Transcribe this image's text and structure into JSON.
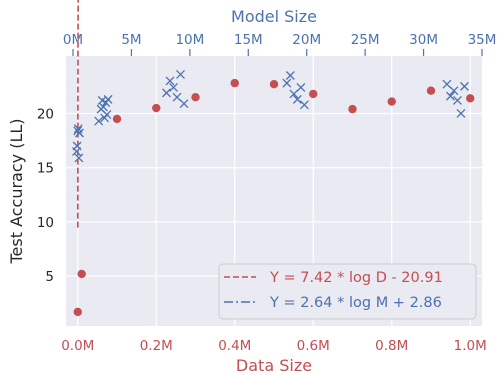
{
  "chart_data": {
    "type": "scatter",
    "grid": true,
    "legend_position": "bottom-right",
    "xlabel_bottom": "Data Size",
    "xlabel_top": "Model Size",
    "ylabel": "Test Accuracy (LL)",
    "x_bottom": {
      "range": [
        -0.03,
        1.03
      ],
      "ticks": [
        0,
        0.2,
        0.4,
        0.6,
        0.8,
        1.0
      ],
      "tick_labels": [
        "0.0M",
        "0.2M",
        "0.4M",
        "0.6M",
        "0.8M",
        "1.0M"
      ]
    },
    "x_top": {
      "range": [
        -0.6,
        35
      ],
      "ticks": [
        0,
        5,
        10,
        15,
        20,
        25,
        30,
        35
      ],
      "tick_labels": [
        "0M",
        "5M",
        "10M",
        "15M",
        "20M",
        "25M",
        "30M",
        "35M"
      ]
    },
    "y": {
      "range": [
        0.4,
        25.3
      ],
      "ticks": [
        5,
        10,
        15,
        20
      ],
      "tick_labels": [
        "5",
        "10",
        "15",
        "20"
      ]
    },
    "colors": {
      "data": "#c44e52",
      "model": "#4c72b0",
      "plot_bg": "#eaeaf2",
      "grid": "#ffffff"
    },
    "series": [
      {
        "name": "Y = 7.42 * log D - 20.91",
        "axis": "data",
        "marker": "circle",
        "x": [
          0.0,
          0.01,
          0.1,
          0.2,
          0.3,
          0.4,
          0.5,
          0.6,
          0.7,
          0.8,
          0.9,
          1.0
        ],
        "y": [
          1.7,
          5.2,
          19.5,
          20.5,
          21.5,
          22.8,
          22.7,
          21.8,
          20.4,
          21.1,
          22.1,
          21.4
        ]
      },
      {
        "name": "Y = 2.64 * log M + 2.86",
        "axis": "model",
        "marker": "x",
        "x": [
          0.3,
          0.35,
          0.4,
          0.45,
          0.5,
          0.55,
          2.2,
          2.4,
          2.5,
          2.6,
          2.7,
          2.8,
          2.9,
          3.0,
          8.0,
          8.3,
          8.6,
          8.9,
          9.2,
          9.5,
          18.3,
          18.6,
          18.9,
          19.2,
          19.5,
          19.8,
          32.0,
          32.3,
          32.6,
          32.9,
          33.2,
          33.5
        ],
        "y": [
          16.5,
          17.0,
          18.4,
          18.6,
          15.9,
          18.2,
          19.3,
          20.4,
          21.2,
          20.6,
          19.6,
          21.0,
          19.9,
          21.3,
          21.9,
          23.0,
          22.4,
          21.5,
          23.6,
          20.9,
          22.8,
          23.5,
          21.8,
          21.3,
          22.4,
          20.8,
          22.7,
          21.6,
          22.1,
          21.2,
          20.0,
          22.5
        ]
      }
    ],
    "fits": [
      {
        "name": "Y = 7.42 * log D - 20.91",
        "axis": "data",
        "style": "dashed",
        "a": 7.42,
        "b": -20.91,
        "x_from": 6e-05,
        "x_to": 1.0
      },
      {
        "name": "Y = 2.64 * log M + 2.86",
        "axis": "model",
        "style": "dashdot",
        "a": 2.64,
        "b": 2.86,
        "x_from": 0.3,
        "x_to": 33.5
      }
    ],
    "legend": [
      "Y = 7.42 * log D - 20.91",
      "Y = 2.64 * log M + 2.86"
    ]
  }
}
